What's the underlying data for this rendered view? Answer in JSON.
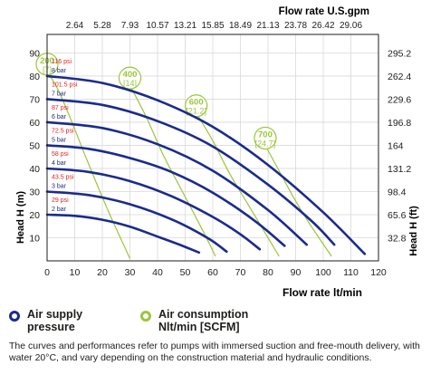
{
  "chart_data": {
    "type": "line",
    "x_top_label": "Flow rate U.S.gpm",
    "x_top_ticks": [
      "2.64",
      "5.28",
      "7.93",
      "10.57",
      "13.21",
      "15.85",
      "18.49",
      "21.13",
      "23.78",
      "26.42",
      "29.06"
    ],
    "xlabel": "Flow rate lt/min",
    "x_ticks": [
      "0",
      "10",
      "20",
      "30",
      "40",
      "50",
      "60",
      "70",
      "80",
      "90",
      "100",
      "110",
      "120"
    ],
    "ylabel": "Head H (m)",
    "y_ticks": [
      "10",
      "20",
      "30",
      "40",
      "50",
      "60",
      "70",
      "80",
      "90"
    ],
    "ylabel_right": "Head H (ft)",
    "y_right_ticks": [
      "32.8",
      "65.6",
      "98.4",
      "131.2",
      "164",
      "196.8",
      "229.6",
      "262.4",
      "295.2"
    ],
    "xlim": [
      0,
      120
    ],
    "ylim": [
      0,
      98
    ],
    "grid": true,
    "series": [
      {
        "psi": "29 psi",
        "bar": "2 bar",
        "x": [
          0,
          10,
          20,
          30,
          40,
          48,
          55
        ],
        "y": [
          20,
          19.5,
          17.8,
          14.8,
          10.5,
          7,
          3.6
        ]
      },
      {
        "psi": "43.5 psi",
        "bar": "3 bar",
        "x": [
          0,
          15,
          30,
          45,
          58,
          65
        ],
        "y": [
          30,
          28.5,
          24.5,
          18,
          10,
          4
        ]
      },
      {
        "psi": "58 psi",
        "bar": "4 bar",
        "x": [
          0,
          15,
          30,
          45,
          60,
          70,
          77
        ],
        "y": [
          40,
          38.5,
          34.5,
          28,
          19,
          11.5,
          5
        ]
      },
      {
        "psi": "72.5 psi",
        "bar": "5 bar",
        "x": [
          0,
          15,
          30,
          45,
          60,
          75,
          86
        ],
        "y": [
          50,
          48.5,
          44.5,
          38.5,
          29.5,
          17.5,
          6.5
        ]
      },
      {
        "psi": "87 psi",
        "bar": "6 bar",
        "x": [
          0,
          20,
          40,
          60,
          80,
          94
        ],
        "y": [
          60,
          57.5,
          50.5,
          39,
          22,
          7
        ]
      },
      {
        "psi": "101.5 psi",
        "bar": "7 bar",
        "x": [
          0,
          20,
          40,
          60,
          80,
          96,
          104
        ],
        "y": [
          70,
          67.5,
          60.5,
          49.5,
          33,
          17,
          7
        ]
      },
      {
        "psi": "116 psi",
        "bar": "8 bar",
        "x": [
          0,
          20,
          40,
          60,
          80,
          100,
          115
        ],
        "y": [
          80,
          77,
          69.5,
          58,
          41.5,
          21,
          3
        ]
      }
    ],
    "consumption_curves": [
      {
        "label": "200",
        "scfm": "[7]",
        "x": [
          0,
          4,
          9,
          15,
          22,
          30
        ],
        "y": [
          82,
          74,
          60,
          42,
          22,
          1
        ]
      },
      {
        "label": "400",
        "scfm": "[14]",
        "x": [
          30,
          36,
          42,
          49,
          56,
          61
        ],
        "y": [
          76,
          62,
          46,
          30,
          14,
          2
        ]
      },
      {
        "label": "600",
        "scfm": "[21.2]",
        "x": [
          54,
          60,
          66,
          73,
          79,
          84
        ],
        "y": [
          64,
          52,
          38,
          24,
          12,
          2
        ]
      },
      {
        "label": "700",
        "scfm": "[24.7]",
        "x": [
          79,
          84,
          89,
          94,
          99,
          103
        ],
        "y": [
          50,
          39,
          28,
          18,
          9,
          2
        ]
      }
    ],
    "colors": {
      "pressure": "#1a2b8c",
      "consumption": "#9cc53c",
      "psi_text": "#e2231a",
      "grid": "#d9d9d9"
    }
  },
  "legend": {
    "air_supply": "Air supply\npressure",
    "air_consumption": "Air consumption\nNlt/min [SCFM]"
  },
  "footnote": "The curves and performances refer to pumps with immersed suction and free-mouth delivery, with water 20°C, and vary depending on the construction material and hydraulic conditions."
}
